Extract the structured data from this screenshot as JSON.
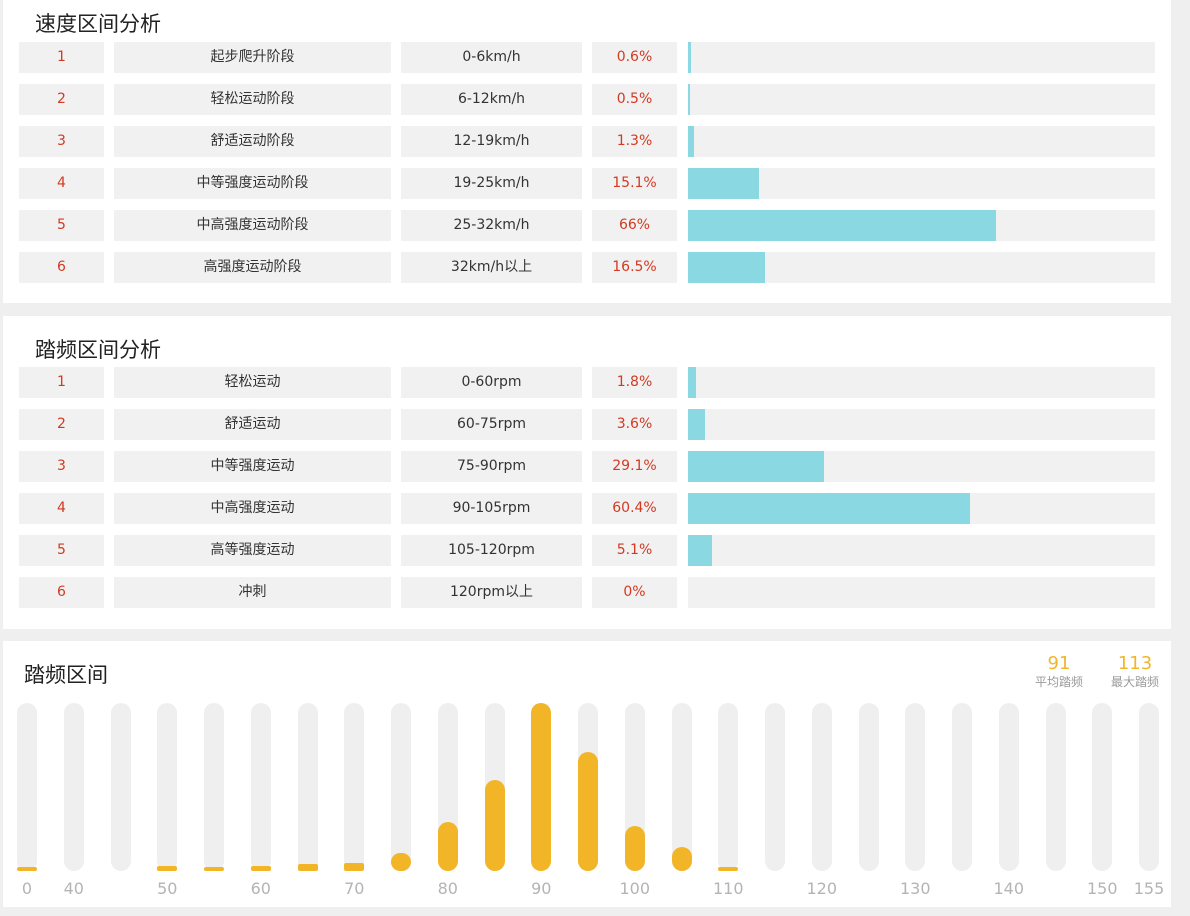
{
  "speed_section": {
    "title": "速度区间分析",
    "rows": [
      {
        "index": "1",
        "name": "起步爬升阶段",
        "range": "0-6km/h",
        "percent": "0.6%",
        "share": 0.6
      },
      {
        "index": "2",
        "name": "轻松运动阶段",
        "range": "6-12km/h",
        "percent": "0.5%",
        "share": 0.5
      },
      {
        "index": "3",
        "name": "舒适运动阶段",
        "range": "12-19km/h",
        "percent": "1.3%",
        "share": 1.3
      },
      {
        "index": "4",
        "name": "中等强度运动阶段",
        "range": "19-25km/h",
        "percent": "15.1%",
        "share": 15.1
      },
      {
        "index": "5",
        "name": "中高强度运动阶段",
        "range": "25-32km/h",
        "percent": "66%",
        "share": 66
      },
      {
        "index": "6",
        "name": "高强度运动阶段",
        "range": "32km/h以上",
        "percent": "16.5%",
        "share": 16.5
      }
    ]
  },
  "cadence_section": {
    "title": "踏频区间分析",
    "rows": [
      {
        "index": "1",
        "name": "轻松运动",
        "range": "0-60rpm",
        "percent": "1.8%",
        "share": 1.8
      },
      {
        "index": "2",
        "name": "舒适运动",
        "range": "60-75rpm",
        "percent": "3.6%",
        "share": 3.6
      },
      {
        "index": "3",
        "name": "中等强度运动",
        "range": "75-90rpm",
        "percent": "29.1%",
        "share": 29.1
      },
      {
        "index": "4",
        "name": "中高强度运动",
        "range": "90-105rpm",
        "percent": "60.4%",
        "share": 60.4
      },
      {
        "index": "5",
        "name": "高等强度运动",
        "range": "105-120rpm",
        "percent": "5.1%",
        "share": 5.1
      },
      {
        "index": "6",
        "name": "冲刺",
        "range": "120rpm以上",
        "percent": "0%",
        "share": 0
      }
    ]
  },
  "histogram": {
    "title": "踏频区间",
    "avg_value": "91",
    "avg_label": "平均踏频",
    "max_value": "113",
    "max_label": "最大踏频",
    "bar_color": "#f3b528",
    "track_color": "#efefef"
  },
  "chart_data": {
    "type": "bar",
    "title": "踏频区间",
    "categories": [
      "0",
      "40",
      "45",
      "50",
      "55",
      "60",
      "65",
      "70",
      "75",
      "80",
      "85",
      "90",
      "95",
      "100",
      "105",
      "110",
      "115",
      "120",
      "125",
      "130",
      "135",
      "140",
      "145",
      "150",
      "155"
    ],
    "tick_labels": [
      "0",
      "40",
      "",
      "50",
      "",
      "60",
      "",
      "70",
      "",
      "80",
      "",
      "90",
      "",
      "100",
      "",
      "110",
      "",
      "120",
      "",
      "130",
      "",
      "140",
      "",
      "150",
      "155"
    ],
    "values": [
      1,
      0,
      0,
      3,
      2,
      3,
      4,
      5,
      11,
      29,
      54,
      100,
      71,
      27,
      14,
      1,
      0,
      0,
      0,
      0,
      0,
      0,
      0,
      0,
      0
    ],
    "ylim": [
      0,
      100
    ],
    "grid": false,
    "legend": "none"
  },
  "colors": {
    "accent_red": "#d23a22",
    "zone_bar": "#8ad8e2",
    "cell_bg": "#f1f1f1"
  }
}
